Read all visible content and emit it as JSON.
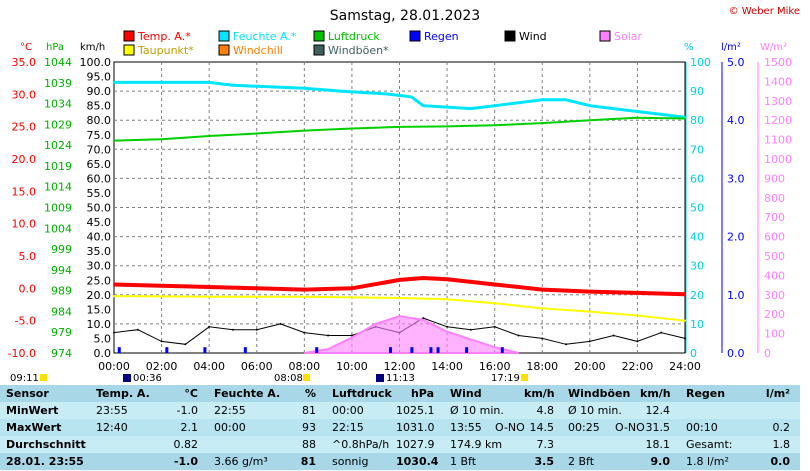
{
  "title": "Samstag, 28.01.2023",
  "copyright": "© Weber Mike",
  "units": [
    "°C",
    "hPa",
    "km/h",
    "%",
    "l/m²",
    "W/m²"
  ],
  "legend": [
    {
      "label": "Temp. A.*",
      "color": "#ff0000"
    },
    {
      "label": "Feuchte A.*",
      "color": "#00e5ff"
    },
    {
      "label": "Luftdruck",
      "color": "#00c000"
    },
    {
      "label": "Regen",
      "color": "#0000ff"
    },
    {
      "label": "Wind",
      "color": "#000000"
    },
    {
      "label": "Solar",
      "color": "#ff80ff"
    },
    {
      "label": "Taupunkt*",
      "color": "#ffff00"
    },
    {
      "label": "Windchill",
      "color": "#ff8000"
    },
    {
      "label": "Windböen*",
      "color": "#406060"
    }
  ],
  "sun": {
    "rise": "08:08",
    "set": "17:19",
    "moonrise": "09:11",
    "moonset1": "00:36",
    "moonset2": "11:13"
  },
  "chart_data": {
    "type": "line",
    "xlabel": "",
    "x_ticks": [
      "00:00",
      "02:00",
      "04:00",
      "06:00",
      "08:00",
      "10:00",
      "12:00",
      "14:00",
      "16:00",
      "18:00",
      "20:00",
      "22:00",
      "24:00"
    ],
    "axes": {
      "temperature_c": {
        "range": [
          -10,
          35
        ],
        "ticks": [
          "35.0",
          "30.0",
          "25.0",
          "20.0",
          "15.0",
          "10.0",
          "5.0",
          "0.0",
          "-5.0",
          "-10.0"
        ]
      },
      "pressure_hpa": {
        "range": [
          974,
          1044
        ],
        "ticks": [
          "1044",
          "1039",
          "1034",
          "1029",
          "1024",
          "1019",
          "1014",
          "1009",
          "1004",
          "999",
          "994",
          "989",
          "984",
          "979",
          "974"
        ]
      },
      "wind_kmh": {
        "range": [
          0,
          100
        ],
        "ticks": [
          "100.0",
          "95.0",
          "90.0",
          "85.0",
          "80.0",
          "75.0",
          "70.0",
          "65.0",
          "60.0",
          "55.0",
          "50.0",
          "45.0",
          "40.0",
          "35.0",
          "30.0",
          "25.0",
          "20.0",
          "15.0",
          "10.0",
          "5.0",
          "0.0"
        ]
      },
      "humidity_pct": {
        "range": [
          0,
          100
        ],
        "ticks": [
          "100",
          "90",
          "80",
          "70",
          "60",
          "50",
          "40",
          "30",
          "20",
          "10",
          "0"
        ]
      },
      "rain_lm2": {
        "range": [
          0,
          5
        ],
        "ticks": [
          "5.0",
          "4.0",
          "3.0",
          "2.0",
          "1.0",
          "0.0"
        ]
      },
      "solar_wm2": {
        "range": [
          0,
          1500
        ],
        "ticks": [
          "1500",
          "1400",
          "1300",
          "1200",
          "1100",
          "1000",
          "900",
          "800",
          "700",
          "600",
          "500",
          "400",
          "300",
          "200",
          "100",
          "0"
        ]
      }
    },
    "series": [
      {
        "name": "Temp. A.*",
        "axis": "temperature_c",
        "x": [
          0,
          2,
          4,
          6,
          8,
          10,
          12,
          13,
          14,
          16,
          18,
          20,
          22,
          24
        ],
        "values": [
          0.6,
          0.4,
          0.2,
          0.0,
          -0.2,
          0.0,
          1.3,
          1.6,
          1.4,
          0.6,
          -0.2,
          -0.5,
          -0.7,
          -0.9
        ]
      },
      {
        "name": "Feuchte A.*",
        "axis": "humidity_pct",
        "x": [
          0,
          4,
          5,
          8,
          9.5,
          11.5,
          12.5,
          13,
          15,
          16,
          17,
          18,
          19,
          20,
          21,
          22,
          23,
          24
        ],
        "values": [
          93,
          93,
          92,
          91,
          90,
          89,
          88,
          85,
          84,
          85,
          86,
          87,
          87,
          85,
          84,
          83,
          82,
          81
        ]
      },
      {
        "name": "Luftdruck",
        "axis": "pressure_hpa",
        "x": [
          0,
          2,
          4,
          6,
          8,
          10,
          12,
          14,
          16,
          18,
          20,
          22,
          24
        ],
        "values": [
          1025.1,
          1025.4,
          1026.2,
          1026.8,
          1027.5,
          1028.0,
          1028.4,
          1028.5,
          1028.8,
          1029.3,
          1030.0,
          1030.6,
          1030.4
        ]
      },
      {
        "name": "Taupunkt*",
        "axis": "temperature_c",
        "x": [
          0,
          4,
          8,
          12,
          14,
          16,
          18,
          20,
          22,
          24
        ],
        "values": [
          -1.2,
          -1.3,
          -1.3,
          -1.5,
          -1.7,
          -2.3,
          -3.1,
          -3.6,
          -4.2,
          -5.0
        ]
      },
      {
        "name": "Wind",
        "axis": "wind_kmh",
        "x": [
          0,
          1,
          2,
          3,
          4,
          5,
          6,
          7,
          8,
          9,
          10,
          11,
          12,
          13,
          14,
          15,
          16,
          17,
          18,
          19,
          20,
          21,
          22,
          23,
          24
        ],
        "values": [
          7,
          8,
          4,
          3,
          9,
          8,
          8,
          10,
          7,
          6,
          6,
          9,
          7,
          12,
          9,
          8,
          9,
          6,
          5,
          3,
          4,
          6,
          4,
          7,
          5
        ]
      },
      {
        "name": "Solar",
        "axis": "solar_wm2",
        "x": [
          8,
          9,
          10,
          11,
          12,
          13,
          14,
          15,
          16,
          17
        ],
        "values": [
          0,
          20,
          80,
          150,
          190,
          170,
          110,
          70,
          30,
          0
        ]
      },
      {
        "name": "Regen",
        "axis": "rain_lm2",
        "x": [
          0.2,
          2.2,
          3.8,
          5.5,
          8.5,
          11.6,
          12.5,
          13.3,
          13.6,
          14.8,
          16.3
        ],
        "values": [
          0.1,
          0.1,
          0.1,
          0.1,
          0.1,
          0.1,
          0.1,
          0.1,
          0.1,
          0.1,
          0.1
        ]
      }
    ]
  },
  "table": {
    "headers": [
      "Sensor",
      "Temp. A.",
      "°C",
      "Feuchte A.",
      "%",
      "Luftdruck",
      "hPa",
      "Wind",
      "km/h",
      "Windböen",
      "km/h",
      "Regen",
      "l/m²"
    ],
    "rows": [
      {
        "label": "MinWert",
        "temp_time": "23:55",
        "temp": "-1.0",
        "hum_time": "22:55",
        "hum": "81",
        "pres_time": "00:00",
        "pres": "1025.1",
        "wind_a": "Ø 10 min.",
        "wind_b": "",
        "wind_v": "4.8",
        "gust_a": "Ø 10 min.",
        "gust_b": "",
        "gust_v": "12.4",
        "rain_a": "",
        "rain_v": ""
      },
      {
        "label": "MaxWert",
        "temp_time": "12:40",
        "temp": "2.1",
        "hum_time": "00:00",
        "hum": "93",
        "pres_time": "22:15",
        "pres": "1031.0",
        "wind_a": "13:55",
        "wind_b": "O-NO",
        "wind_v": "14.5",
        "gust_a": "00:25",
        "gust_b": "O-NO",
        "gust_v": "31.5",
        "rain_a": "00:10",
        "rain_v": "0.2"
      },
      {
        "label": "Durchschnitt",
        "temp_time": "",
        "temp": "0.82",
        "hum_time": "",
        "hum": "88",
        "pres_time": "^0.8hPa/h",
        "pres": "1027.9",
        "wind_a": "174.9 km",
        "wind_b": "",
        "wind_v": "7.3",
        "gust_a": "",
        "gust_b": "",
        "gust_v": "18.1",
        "rain_a": "Gesamt:",
        "rain_v": "1.8"
      },
      {
        "label": "28.01. 23:55",
        "temp_time": "",
        "temp": "-1.0",
        "hum_time": "3.66 g/m³",
        "hum": "81",
        "pres_time": "sonnig",
        "pres": "1030.4",
        "wind_a": "1 Bft",
        "wind_b": "",
        "wind_v": "3.5",
        "gust_a": "2 Bft",
        "gust_b": "",
        "gust_v": "9.0",
        "rain_a": "1.8 l/m²",
        "rain_v": "0.0"
      }
    ]
  }
}
